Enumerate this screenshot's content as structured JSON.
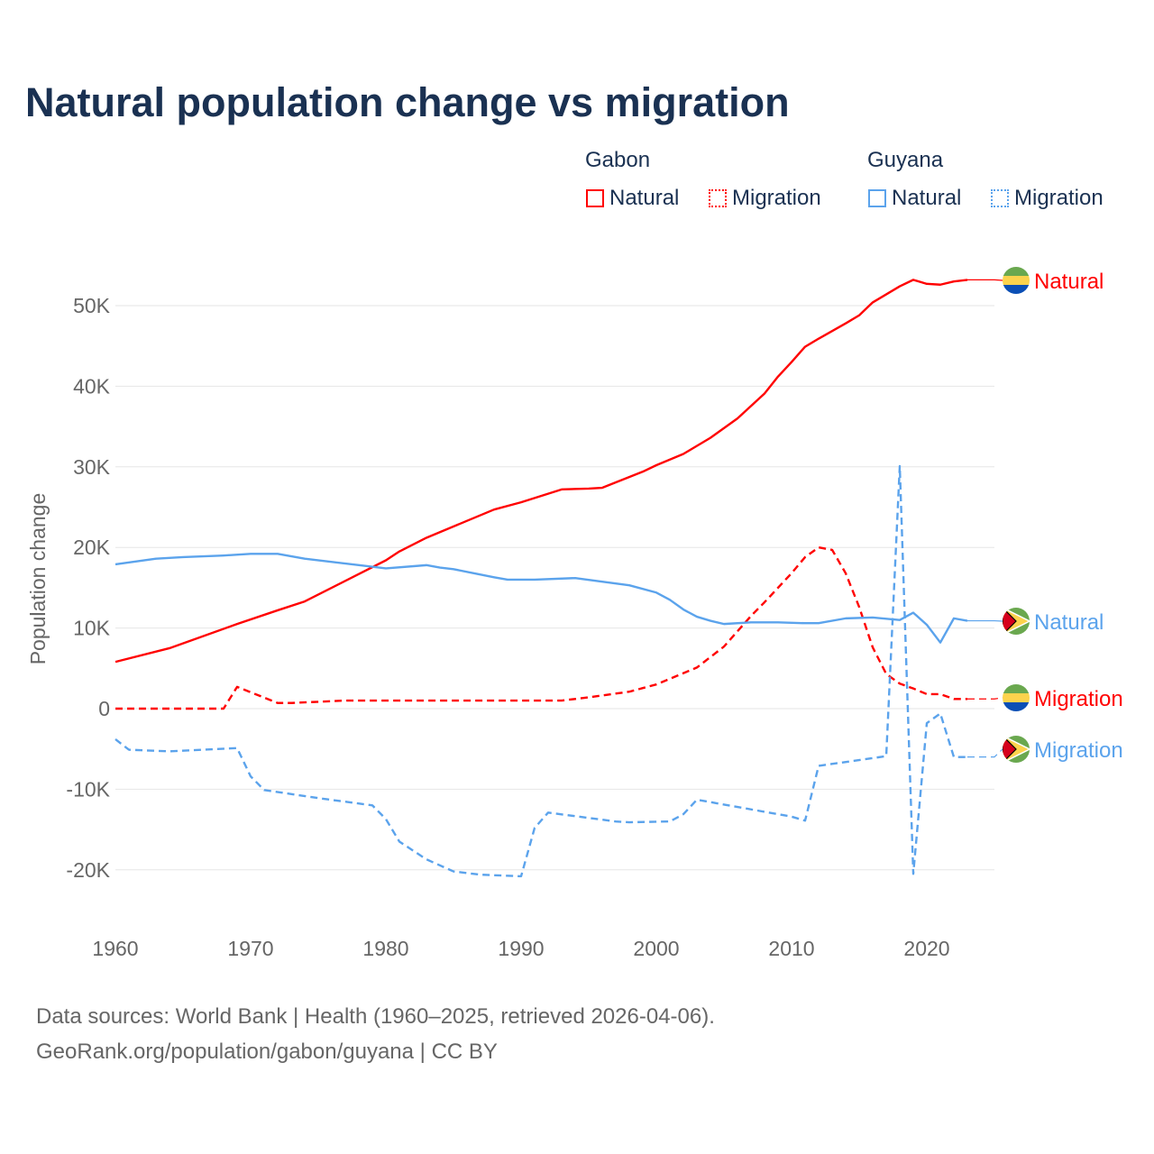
{
  "chart_data": {
    "type": "line",
    "title": "Natural population change vs migration",
    "ylabel": "Population change",
    "xlabel": "",
    "xlim": [
      1960,
      2025
    ],
    "ylim": [
      -25000,
      57000
    ],
    "xticks": [
      1960,
      1970,
      1980,
      1990,
      2000,
      2010,
      2020
    ],
    "xtick_labels": [
      "1960",
      "1970",
      "1980",
      "1990",
      "2000",
      "2010",
      "2020"
    ],
    "yticks": [
      -20000,
      -10000,
      0,
      10000,
      20000,
      30000,
      40000,
      50000
    ],
    "ytick_labels": [
      "-20K",
      "-10K",
      "0",
      "10K",
      "20K",
      "30K",
      "40K",
      "50K"
    ],
    "grid": true,
    "legend": {
      "placement": "top-right",
      "groups": [
        {
          "name": "Gabon",
          "items": [
            "Natural",
            "Migration"
          ]
        },
        {
          "name": "Guyana",
          "items": [
            "Natural",
            "Migration"
          ]
        }
      ]
    },
    "series": [
      {
        "name": "Natural",
        "country": "Gabon",
        "color": "#ff0000",
        "dash": false,
        "x": [
          1960,
          1964,
          1969,
          1972,
          1974,
          1980,
          1981,
          1983,
          1986,
          1988,
          1990,
          1993,
          1995,
          1996,
          1999,
          2000,
          2002,
          2004,
          2006,
          2008,
          2009,
          2010,
          2011,
          2012,
          2014,
          2015,
          2016,
          2018,
          2019,
          2020,
          2021,
          2022,
          2023
        ],
        "y": [
          5800,
          7500,
          10500,
          12200,
          13300,
          18400,
          19500,
          21200,
          23300,
          24700,
          25600,
          27200,
          27300,
          27400,
          29400,
          30200,
          31600,
          33600,
          36000,
          39100,
          41200,
          43000,
          44900,
          45900,
          47800,
          48800,
          50400,
          52400,
          53200,
          52700,
          52600,
          53000,
          53200
        ]
      },
      {
        "name": "Migration",
        "country": "Gabon",
        "color": "#ff0000",
        "dash": true,
        "x": [
          1960,
          1968,
          1969,
          1972,
          1973,
          1977,
          1993,
          1995,
          1998,
          2000,
          2003,
          2005,
          2007,
          2008,
          2010,
          2011,
          2012,
          2013,
          2014,
          2015,
          2016,
          2017,
          2018,
          2019,
          2020,
          2021,
          2022,
          2023
        ],
        "y": [
          0,
          0,
          2700,
          700,
          700,
          1000,
          1000,
          1400,
          2100,
          3000,
          5100,
          7700,
          11500,
          13200,
          16800,
          18800,
          20000,
          19700,
          16800,
          12600,
          7600,
          4300,
          3100,
          2500,
          1800,
          1800,
          1200,
          1200
        ]
      },
      {
        "name": "Natural",
        "country": "Guyana",
        "color": "#5ba3ec",
        "dash": false,
        "x": [
          1960,
          1963,
          1965,
          1968,
          1970,
          1972,
          1974,
          1978,
          1980,
          1983,
          1984,
          1985,
          1988,
          1989,
          1991,
          1994,
          1998,
          2000,
          2001,
          2002,
          2003,
          2004,
          2005,
          2007,
          2009,
          2011,
          2012,
          2014,
          2016,
          2018,
          2019,
          2020,
          2021,
          2022,
          2023
        ],
        "y": [
          17900,
          18600,
          18800,
          19000,
          19200,
          19200,
          18600,
          17800,
          17400,
          17800,
          17500,
          17300,
          16300,
          16000,
          16000,
          16200,
          15300,
          14400,
          13500,
          12300,
          11400,
          10900,
          10500,
          10700,
          10700,
          10600,
          10600,
          11200,
          11300,
          11000,
          11900,
          10400,
          8200,
          11200,
          10900
        ]
      },
      {
        "name": "Migration",
        "country": "Guyana",
        "color": "#5ba3ec",
        "dash": true,
        "x": [
          1960,
          1961,
          1964,
          1969,
          1970,
          1971,
          1975,
          1979,
          1980,
          1981,
          1983,
          1985,
          1987,
          1990,
          1991,
          1992,
          1997,
          1998,
          2001,
          2002,
          2003,
          2010,
          2011,
          2012,
          2017,
          2018,
          2019,
          2020,
          2021,
          2022,
          2023
        ],
        "y": [
          -3800,
          -5100,
          -5300,
          -4900,
          -8400,
          -10100,
          -11100,
          -12000,
          -13700,
          -16500,
          -18700,
          -20200,
          -20600,
          -20800,
          -14800,
          -12900,
          -14000,
          -14100,
          -14000,
          -13100,
          -11300,
          -13400,
          -13900,
          -7100,
          -5900,
          30100,
          -20500,
          -1800,
          -600,
          -6000,
          -6000
        ]
      }
    ],
    "end_labels": [
      {
        "text": "Natural",
        "country": "Gabon",
        "flag": "gabon-flag-icon"
      },
      {
        "text": "Natural",
        "country": "Guyana",
        "flag": "guyana-flag-icon"
      },
      {
        "text": "Migration",
        "country": "Gabon",
        "flag": "gabon-flag-icon"
      },
      {
        "text": "Migration",
        "country": "Guyana",
        "flag": "guyana-flag-icon"
      }
    ]
  },
  "source": {
    "line1": "Data sources: World Bank | Health (1960–2025, retrieved 2026-04-06).",
    "line2": "GeoRank.org/population/gabon/guyana | CC BY"
  }
}
